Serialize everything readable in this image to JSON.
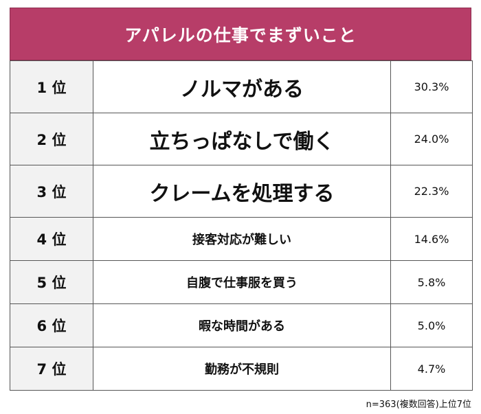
{
  "title": "アパレルの仕事でまずいこと",
  "note": "n=363(複数回答)上位7位",
  "accent_color": "#b73d68",
  "chart_data": {
    "type": "table",
    "title": "アパレルの仕事でまずいこと",
    "columns": [
      "rank",
      "item",
      "percent"
    ],
    "rows": [
      {
        "rank": "1 位",
        "item": "ノルマがある",
        "percent": "30.3%",
        "value": 30.3
      },
      {
        "rank": "2 位",
        "item": "立ちっぱなしで働く",
        "percent": "24.0%",
        "value": 24.0
      },
      {
        "rank": "3 位",
        "item": "クレームを処理する",
        "percent": "22.3%",
        "value": 22.3
      },
      {
        "rank": "4 位",
        "item": "接客対応が難しい",
        "percent": "14.6%",
        "value": 14.6
      },
      {
        "rank": "5 位",
        "item": "自腹で仕事服を買う",
        "percent": "5.8%",
        "value": 5.8
      },
      {
        "rank": "6 位",
        "item": "暇な時間がある",
        "percent": "5.0%",
        "value": 5.0
      },
      {
        "rank": "7 位",
        "item": "勤務が不規則",
        "percent": "4.7%",
        "value": 4.7
      }
    ]
  }
}
